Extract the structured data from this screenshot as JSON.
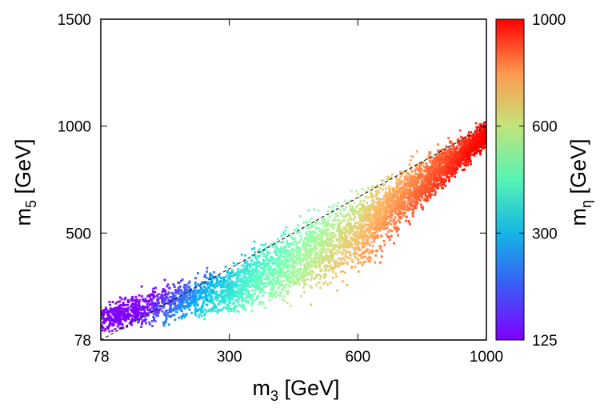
{
  "chart_data": {
    "type": "scatter",
    "title": "",
    "xlabel": {
      "base": "m",
      "sub": "3",
      "unit": " [GeV]"
    },
    "ylabel": {
      "base": "m",
      "sub": "5",
      "unit": " [GeV]"
    },
    "colorbar_label": {
      "base": "m",
      "sub": "η",
      "unit": " [GeV]"
    },
    "x_ticks": [
      78,
      300,
      600,
      1000
    ],
    "y_ticks": [
      78,
      500,
      1000,
      1500
    ],
    "colorbar_ticks": [
      125,
      300,
      600,
      1000
    ],
    "xlim": [
      78,
      1000
    ],
    "ylim": [
      78,
      1500
    ],
    "color_range": [
      125,
      1000
    ],
    "x_scale": "sqrt-like (tick spacing grows with value)",
    "y_scale": "sqrt-like (tick spacing grows with value)",
    "colormap": "rainbow (violet→blue→cyan→green→yellow→orange→red)",
    "reference_line": {
      "style": "dashed",
      "color": "#000000",
      "from": [
        78,
        78
      ],
      "to": [
        1000,
        1000
      ]
    },
    "color_variable": "m_eta",
    "series": [
      {
        "points_summary": "dense band along m5 ≈ m3, widening at mid-masses",
        "band_edges": [
          {
            "x": 78,
            "y_low": 78,
            "y_high": 250
          },
          {
            "x": 300,
            "y_low": 110,
            "y_high": 440
          },
          {
            "x": 600,
            "y_low": 230,
            "y_high": 790
          },
          {
            "x": 1000,
            "y_low": 860,
            "y_high": 1060
          }
        ],
        "color_trend": "m_eta rises with m3 and falls with m5 (red below line, violet/blue above at small m3)"
      }
    ],
    "grid": false,
    "legend": "colorbar-right"
  }
}
